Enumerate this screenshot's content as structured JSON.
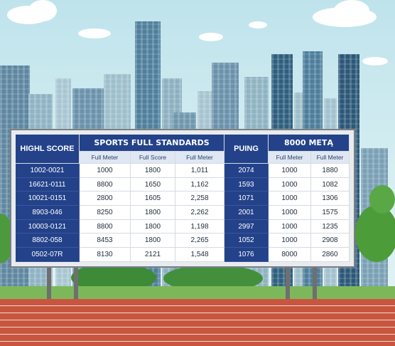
{
  "board": {
    "left_header": "HIGHL SCORE",
    "title_main": "SPORTS FULL STANDARDS",
    "title_mid": "PUING",
    "title_right": "8000 METĄ",
    "subheaders": [
      "Full Meter",
      "Full Score",
      "Full Meter",
      "Full Meter",
      "Full Meter"
    ],
    "rows": [
      [
        "1002-0021",
        "1000",
        "1800",
        "1,011",
        "2074",
        "1000",
        "1880"
      ],
      [
        "16621-0111",
        "8800",
        "1650",
        "1,162",
        "1593",
        "1000",
        "1082"
      ],
      [
        "10021-0151",
        "2800",
        "1605",
        "2,258",
        "1071",
        "1000",
        "1306"
      ],
      [
        "8903-046",
        "8250",
        "1800",
        "2,262",
        "2001",
        "1000",
        "1575"
      ],
      [
        "10003-0121",
        "8800",
        "1800",
        "1,198",
        "2997",
        "1000",
        "1235"
      ],
      [
        "8802-058",
        "8453",
        "1800",
        "2,265",
        "1052",
        "1000",
        "2908"
      ],
      [
        "0502-07R",
        "8130",
        "2121",
        "1,548",
        "1076",
        "8000",
        "2860"
      ]
    ]
  },
  "colors": {
    "header_blue": "#23428a",
    "sky": "#cfe9ef",
    "track": "#c9553f",
    "grass": "#7cb85a"
  }
}
